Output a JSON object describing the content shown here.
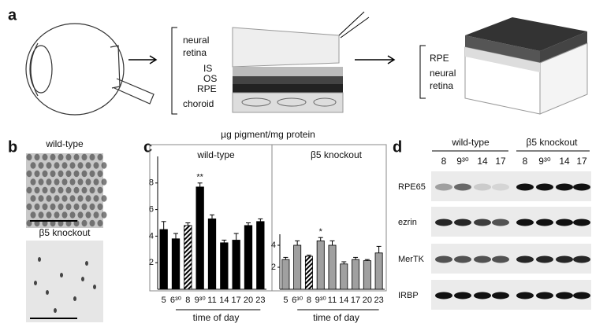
{
  "panel_a": {
    "label": "a",
    "retina_labels": [
      "neural",
      "retina",
      "IS",
      "OS",
      "RPE",
      "choroid"
    ],
    "cube_labels": [
      "RPE",
      "neural",
      "retina"
    ]
  },
  "panel_b": {
    "label": "b",
    "top_title": "wild-type",
    "bottom_title": "β5 knockout"
  },
  "panel_c": {
    "label": "c",
    "title": "µg pigment/mg protein"
  },
  "chart_data": [
    {
      "type": "bar",
      "title": "wild-type",
      "x_label": "time of day",
      "categories": [
        "5",
        "6³⁰",
        "8",
        "9³⁰",
        "11",
        "14",
        "17",
        "20",
        "23"
      ],
      "values": [
        4.5,
        3.8,
        4.8,
        7.7,
        5.3,
        3.5,
        3.7,
        4.8,
        5.1
      ],
      "errors": [
        0.6,
        0.4,
        0.2,
        0.3,
        0.3,
        0.2,
        0.5,
        0.2,
        0.2
      ],
      "hatched": [
        false,
        false,
        true,
        false,
        false,
        false,
        false,
        false,
        false
      ],
      "star_labels": [
        null,
        null,
        null,
        "**",
        null,
        null,
        null,
        null,
        null
      ],
      "color": "#000000",
      "ylim": [
        0,
        10
      ],
      "yticks": [
        2,
        4,
        6,
        8
      ]
    },
    {
      "type": "bar",
      "title": "β5 knockout",
      "x_label": "time of day",
      "categories": [
        "5",
        "6³⁰",
        "8",
        "9³⁰",
        "11",
        "14",
        "17",
        "20",
        "23"
      ],
      "values": [
        2.7,
        4.0,
        3.0,
        4.4,
        4.0,
        2.3,
        2.7,
        2.6,
        3.3
      ],
      "errors": [
        0.2,
        0.4,
        0.1,
        0.3,
        0.4,
        0.2,
        0.2,
        0.1,
        0.6
      ],
      "hatched": [
        false,
        false,
        true,
        false,
        false,
        false,
        false,
        false,
        false
      ],
      "star_labels": [
        null,
        null,
        null,
        "*",
        null,
        null,
        null,
        null,
        null
      ],
      "color": "#a0a0a0",
      "ylim": [
        0,
        5
      ],
      "yticks": [
        2,
        4
      ]
    }
  ],
  "panel_d": {
    "label": "d",
    "groups": [
      "wild-type",
      "β5 knockout"
    ],
    "lanes": [
      "8",
      "9³⁰",
      "14",
      "17",
      "8",
      "9³⁰",
      "14",
      "17"
    ],
    "rows": [
      "RPE65",
      "ezrin",
      "MerTK",
      "IRBP"
    ]
  }
}
